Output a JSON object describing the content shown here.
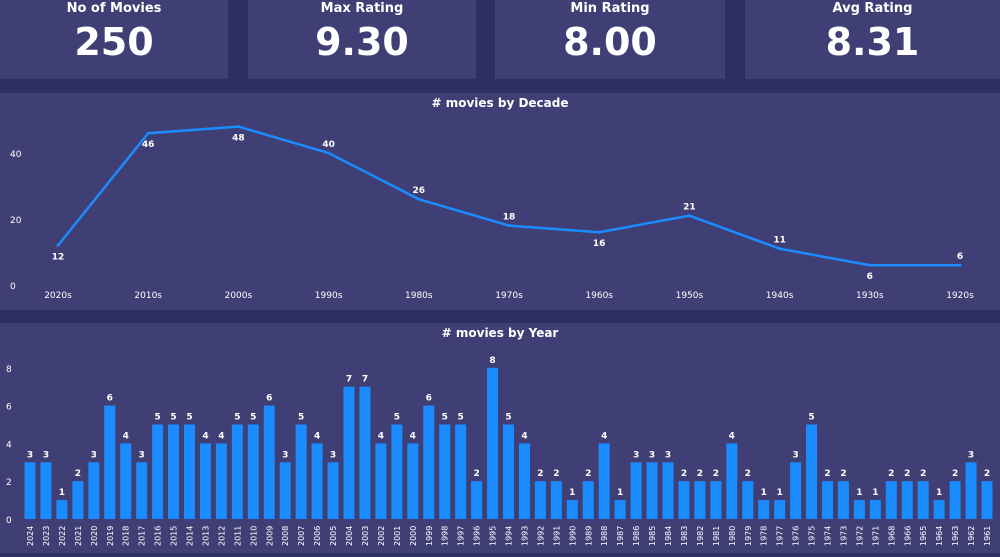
{
  "kpis": [
    {
      "title": "No of Movies",
      "value": "250"
    },
    {
      "title": "Max Rating",
      "value": "9.30"
    },
    {
      "title": "Min Rating",
      "value": "8.00"
    },
    {
      "title": "Avg Rating",
      "value": "8.31"
    }
  ],
  "colors": {
    "line": "#1a8cff",
    "bar": "#1a8cff",
    "panel": "#3f3f75",
    "page": "#2e2e62"
  },
  "chart_data": [
    {
      "type": "line",
      "title": "# movies by Decade",
      "xlabel": "",
      "ylabel": "",
      "ylim": [
        0,
        50
      ],
      "yticks": [
        0,
        20,
        40
      ],
      "categories": [
        "2020s",
        "2010s",
        "2000s",
        "1990s",
        "1980s",
        "1970s",
        "1960s",
        "1950s",
        "1940s",
        "1930s",
        "1920s"
      ],
      "values": [
        12,
        46,
        48,
        40,
        26,
        18,
        16,
        21,
        11,
        6,
        6
      ]
    },
    {
      "type": "bar",
      "title": "# movies by Year",
      "xlabel": "",
      "ylabel": "",
      "ylim": [
        0,
        8
      ],
      "yticks": [
        0,
        2,
        4,
        6,
        8
      ],
      "categories": [
        "2024",
        "2023",
        "2022",
        "2021",
        "2020",
        "2019",
        "2018",
        "2017",
        "2016",
        "2015",
        "2014",
        "2013",
        "2012",
        "2011",
        "2010",
        "2009",
        "2008",
        "2007",
        "2006",
        "2005",
        "2004",
        "2003",
        "2002",
        "2001",
        "2000",
        "1999",
        "1998",
        "1997",
        "1996",
        "1995",
        "1994",
        "1993",
        "1992",
        "1991",
        "1990",
        "1989",
        "1988",
        "1987",
        "1986",
        "1985",
        "1984",
        "1983",
        "1982",
        "1981",
        "1980",
        "1979",
        "1978",
        "1977",
        "1976",
        "1975",
        "1974",
        "1973",
        "1972",
        "1971",
        "1968",
        "1966",
        "1965",
        "1964",
        "1963",
        "1962",
        "1961"
      ],
      "values": [
        3,
        3,
        1,
        2,
        3,
        6,
        4,
        3,
        5,
        5,
        5,
        4,
        4,
        5,
        5,
        6,
        3,
        5,
        4,
        3,
        7,
        7,
        4,
        5,
        4,
        6,
        5,
        5,
        2,
        8,
        5,
        4,
        2,
        2,
        1,
        2,
        4,
        1,
        3,
        3,
        3,
        2,
        2,
        2,
        4,
        2,
        1,
        1,
        3,
        5,
        2,
        2,
        1,
        1,
        2,
        2,
        2,
        1,
        2,
        3,
        2
      ]
    }
  ]
}
